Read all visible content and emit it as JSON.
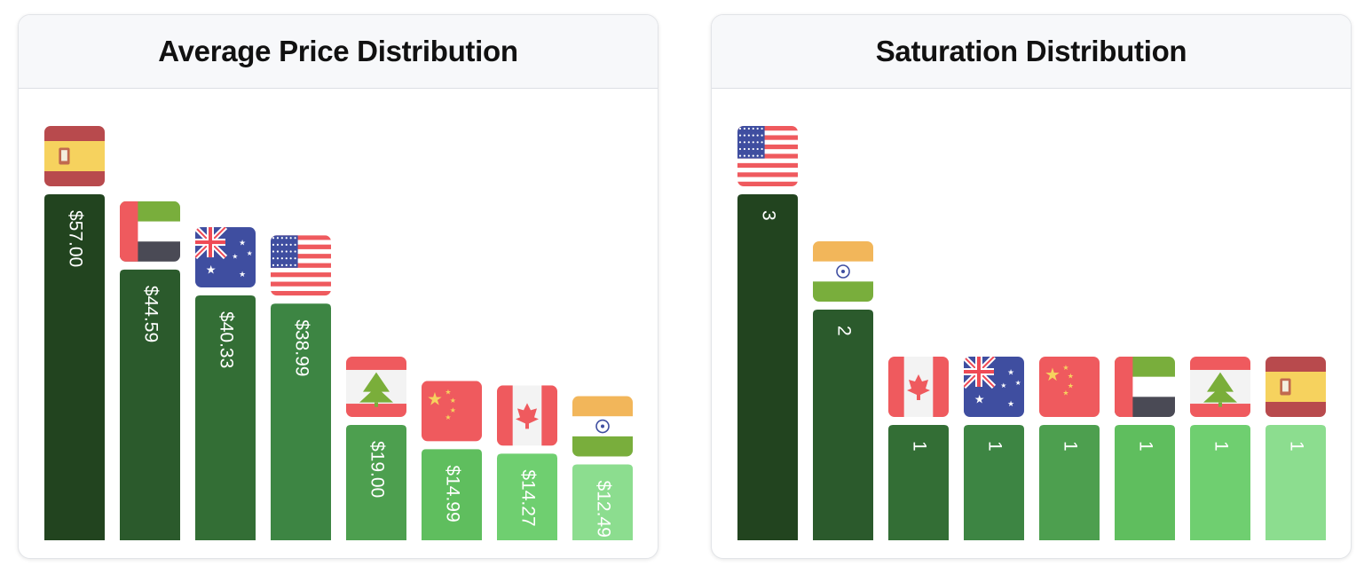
{
  "colors": {
    "ramp": [
      "#22441f",
      "#2b5a2c",
      "#336e35",
      "#3d8543",
      "#4d9f4f",
      "#5fbe5e",
      "#6fcf70",
      "#8cdd8f"
    ]
  },
  "panels": [
    {
      "title": "Average Price Distribution",
      "chart_data": {
        "type": "bar",
        "title": "Average Price Distribution",
        "categories": [
          "Spain",
          "United Arab Emirates",
          "Australia",
          "United States",
          "Lebanon",
          "China",
          "Canada",
          "India"
        ],
        "values": [
          57.0,
          44.59,
          40.33,
          38.99,
          19.0,
          14.99,
          14.27,
          12.49
        ],
        "labels": [
          "$57.00",
          "$44.59",
          "$40.33",
          "$38.99",
          "$19.00",
          "$14.99",
          "$14.27",
          "$12.49"
        ],
        "flag_icons": [
          "spain-flag-icon",
          "uae-flag-icon",
          "australia-flag-icon",
          "usa-flag-icon",
          "lebanon-flag-icon",
          "china-flag-icon",
          "canada-flag-icon",
          "india-flag-icon"
        ],
        "ylim": [
          0,
          57.0
        ],
        "grid": false,
        "legend": "none"
      }
    },
    {
      "title": "Saturation Distribution",
      "chart_data": {
        "type": "bar",
        "title": "Saturation Distribution",
        "categories": [
          "United States",
          "India",
          "Canada",
          "Australia",
          "China",
          "United Arab Emirates",
          "Lebanon",
          "Spain"
        ],
        "values": [
          3,
          2,
          1,
          1,
          1,
          1,
          1,
          1
        ],
        "labels": [
          "3",
          "2",
          "1",
          "1",
          "1",
          "1",
          "1",
          "1"
        ],
        "flag_icons": [
          "usa-flag-icon",
          "india-flag-icon",
          "canada-flag-icon",
          "australia-flag-icon",
          "china-flag-icon",
          "uae-flag-icon",
          "lebanon-flag-icon",
          "spain-flag-icon"
        ],
        "ylim": [
          0,
          3
        ],
        "grid": false,
        "legend": "none"
      }
    }
  ]
}
